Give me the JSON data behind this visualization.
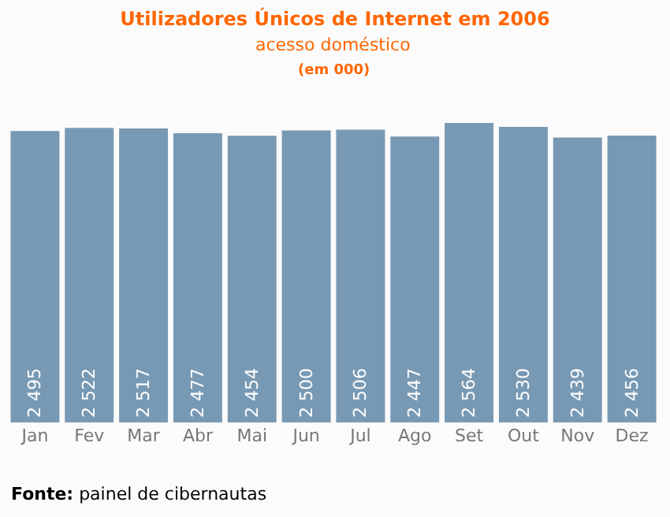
{
  "chart_data": {
    "type": "bar",
    "title": "Utilizadores Únicos de Internet em 2006",
    "subtitle": "acesso doméstico",
    "annotations": [
      "(em 000)",
      "Fonte: painel de cibernautas"
    ],
    "categories": [
      "Jan",
      "Fev",
      "Mar",
      "Abr",
      "Mai",
      "Jun",
      "Jul",
      "Ago",
      "Set",
      "Out",
      "Nov",
      "Dez"
    ],
    "values": [
      2495,
      2522,
      2517,
      2477,
      2454,
      2500,
      2506,
      2447,
      2564,
      2530,
      2439,
      2456
    ],
    "value_labels": [
      "2 495",
      "2 522",
      "2 517",
      "2 477",
      "2 454",
      "2 500",
      "2 506",
      "2 447",
      "2 564",
      "2 530",
      "2 439",
      "2 456"
    ],
    "color": "#7899b4"
  }
}
